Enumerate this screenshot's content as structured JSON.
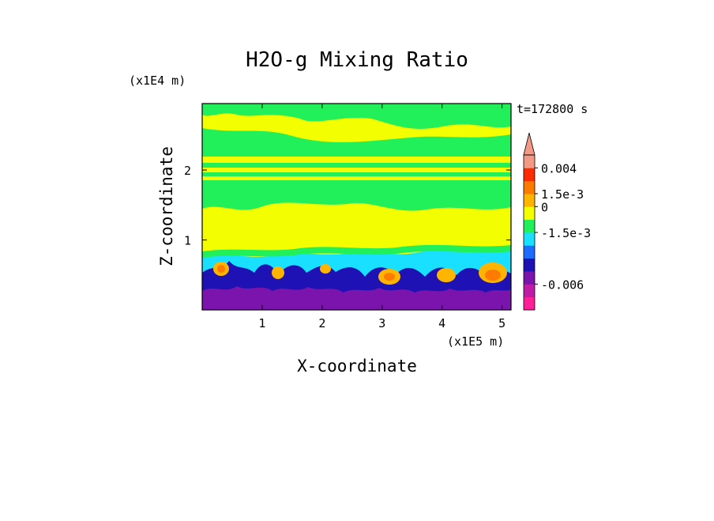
{
  "chart_data": {
    "type": "heatmap",
    "title": "H2O-g Mixing Ratio",
    "xlabel": "X-coordinate",
    "ylabel": "Z-coordinate",
    "x_unit": "(x1E5 m)",
    "y_unit": "(x1E4 m)",
    "time_label": "t=172800 s",
    "xlim": [
      0,
      5.15
    ],
    "ylim": [
      0,
      2.95
    ],
    "x_ticks": [
      {
        "value": 1,
        "label": "1"
      },
      {
        "value": 2,
        "label": "2"
      },
      {
        "value": 3,
        "label": "3"
      },
      {
        "value": 4,
        "label": "4"
      },
      {
        "value": 5,
        "label": "5"
      }
    ],
    "y_ticks": [
      {
        "value": 1,
        "label": "1"
      },
      {
        "value": 2,
        "label": "2"
      }
    ],
    "colorbar": {
      "extend": "max",
      "levels": [
        {
          "color": "#ff1e9a"
        },
        {
          "color": "#c01aa8"
        },
        {
          "color": "#7a14ac"
        },
        {
          "color": "#1f12b4"
        },
        {
          "color": "#1f6bff"
        },
        {
          "color": "#19e0ff"
        },
        {
          "color": "#21f05a"
        },
        {
          "color": "#f3ff00"
        },
        {
          "color": "#ffb400"
        },
        {
          "color": "#ff7a00"
        },
        {
          "color": "#ff2a00"
        },
        {
          "color": "#f39a86"
        }
      ],
      "labels": [
        {
          "text": "0.004",
          "level_boundary": 11
        },
        {
          "text": "1.5e-3",
          "level_boundary": 9
        },
        {
          "text": "0",
          "level_boundary": 8
        },
        {
          "text": "-1.5e-3",
          "level_boundary": 6
        },
        {
          "text": "-0.006",
          "level_boundary": 2
        }
      ]
    },
    "field_structure": {
      "upper_layer": "alternating green and yellow horizontal bands",
      "middle_layer": "yellow",
      "lower_layer": "turbulent cyan, blue, purple and orange plumes"
    }
  }
}
